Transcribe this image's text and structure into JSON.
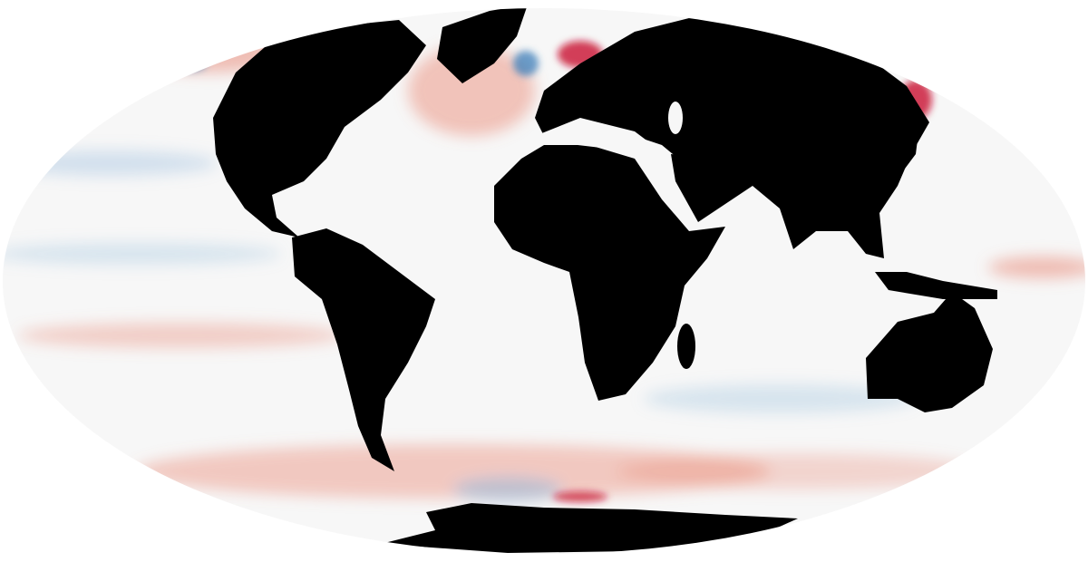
{
  "map": {
    "projection": "mollweide",
    "colors": {
      "land": "#000000",
      "neutral_ocean": "#f7f7f7",
      "warm_anomaly": "#e8836f",
      "strong_warm_anomaly": "#c8102e",
      "cool_anomaly": "#8fb8dc",
      "strong_cool_anomaly": "#2f76b7",
      "background": "#ffffff"
    }
  }
}
